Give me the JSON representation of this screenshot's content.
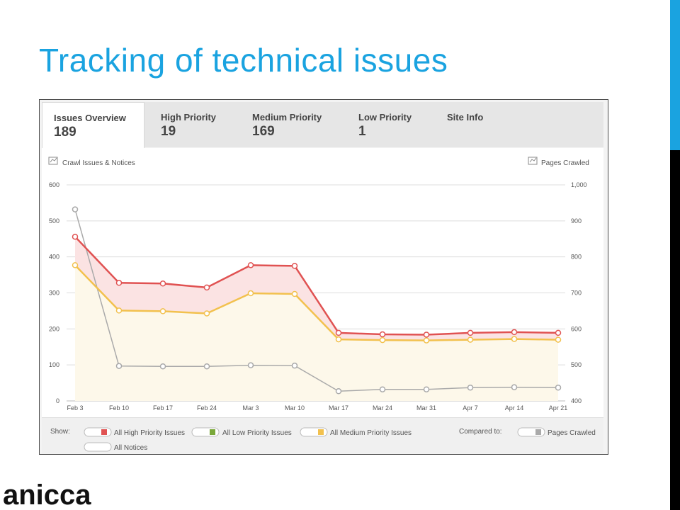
{
  "slide": {
    "title": "Tracking of technical issues",
    "logo_text": "anicca"
  },
  "tabs": [
    {
      "label": "Issues Overview",
      "count": "189",
      "active": true
    },
    {
      "label": "High Priority",
      "count": "19",
      "active": false
    },
    {
      "label": "Medium Priority",
      "count": "169",
      "active": false
    },
    {
      "label": "Low Priority",
      "count": "1",
      "active": false
    },
    {
      "label": "Site Info",
      "count": "",
      "active": false
    }
  ],
  "chart_headers": {
    "left": "Crawl Issues & Notices",
    "right": "Pages Crawled"
  },
  "legend": {
    "show_label": "Show:",
    "compared_label": "Compared to:",
    "items": [
      {
        "label": "All High Priority Issues",
        "color": "#e05252"
      },
      {
        "label": "All Low Priority Issues",
        "color": "#7aa83a"
      },
      {
        "label": "All Medium Priority Issues",
        "color": "#f2c14e"
      },
      {
        "label": "All Notices",
        "color": ""
      }
    ],
    "compared_item": {
      "label": "Pages Crawled",
      "color": "#aaaaaa"
    }
  },
  "chart_data": {
    "type": "line",
    "x": [
      "Feb 3",
      "Feb 10",
      "Feb 17",
      "Feb 24",
      "Mar 3",
      "Mar 10",
      "Mar 17",
      "Mar 24",
      "Mar 31",
      "Apr 7",
      "Apr 14",
      "Apr 21"
    ],
    "y_left": {
      "ticks": [
        "0",
        "100",
        "200",
        "300",
        "400",
        "500",
        "600"
      ],
      "ylim": [
        0,
        600
      ]
    },
    "y_right": {
      "ticks": [
        "400",
        "500",
        "600",
        "700",
        "800",
        "900",
        "1,000"
      ],
      "ylim": [
        400,
        1000
      ]
    },
    "grid": true,
    "series": [
      {
        "name": "All High Priority Issues",
        "axis": "left",
        "color": "#e05252",
        "fill": "#fbe3e3",
        "values": [
          456,
          328,
          326,
          315,
          377,
          375,
          189,
          185,
          184,
          189,
          191,
          189
        ]
      },
      {
        "name": "All Medium Priority Issues",
        "axis": "left",
        "color": "#f2c14e",
        "fill": "#fdf8ea",
        "values": [
          377,
          251,
          249,
          243,
          299,
          297,
          171,
          169,
          168,
          170,
          172,
          170
        ]
      },
      {
        "name": "Pages Crawled",
        "axis": "right",
        "color": "#aaaaaa",
        "fill": "",
        "values": [
          932,
          497,
          496,
          496,
          499,
          498,
          427,
          432,
          432,
          437,
          438,
          437
        ]
      }
    ]
  }
}
